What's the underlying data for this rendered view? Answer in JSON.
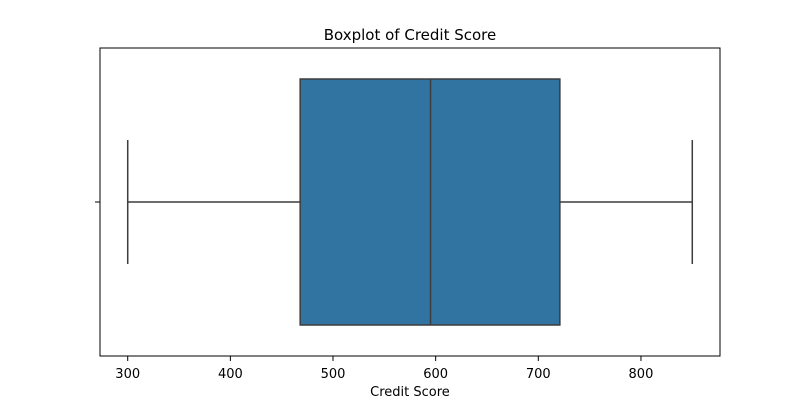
{
  "chart_data": {
    "type": "boxplot",
    "title": "Boxplot of Credit Score",
    "xlabel": "Credit Score",
    "ylabel": "",
    "orientation": "horizontal",
    "xlim": [
      273,
      877
    ],
    "xticks": [
      300,
      400,
      500,
      600,
      700,
      800
    ],
    "grid": false,
    "legend": "none",
    "box_color": "#3274a1",
    "line_color": "#3d3d3d",
    "series": [
      {
        "min": 300,
        "q1": 468,
        "median": 595,
        "q3": 721,
        "max": 850
      }
    ]
  }
}
